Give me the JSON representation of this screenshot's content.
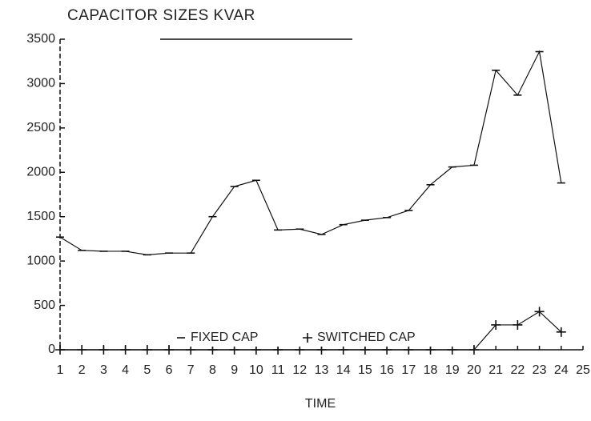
{
  "chart_data": {
    "type": "line",
    "title": "CAPACITOR SIZES KVAR",
    "xlabel": "TIME",
    "x": [
      1,
      2,
      3,
      4,
      5,
      6,
      7,
      8,
      9,
      10,
      11,
      12,
      13,
      14,
      15,
      16,
      17,
      18,
      19,
      20,
      21,
      22,
      23,
      24
    ],
    "series": [
      {
        "name": "FIXED CAP",
        "color": "#111111",
        "marker": "dash",
        "values": [
          1270,
          1120,
          1110,
          1110,
          1070,
          1090,
          1090,
          1500,
          1840,
          1910,
          1350,
          1360,
          1300,
          1410,
          1460,
          1490,
          1570,
          1860,
          2060,
          2080,
          3150,
          2870,
          3360,
          1880
        ]
      },
      {
        "name": "SWITCHED CAP",
        "color": "#111111",
        "marker": "plus",
        "values": [
          0,
          0,
          0,
          0,
          0,
          0,
          0,
          0,
          0,
          0,
          0,
          0,
          0,
          0,
          0,
          0,
          0,
          0,
          0,
          0,
          280,
          280,
          430,
          200
        ]
      }
    ],
    "xlim": [
      1,
      25
    ],
    "xticks": [
      1,
      2,
      3,
      4,
      5,
      6,
      7,
      8,
      9,
      10,
      11,
      12,
      13,
      14,
      15,
      16,
      17,
      18,
      19,
      20,
      21,
      22,
      23,
      24,
      25
    ],
    "ylim": [
      0,
      3500
    ],
    "yticks": [
      0,
      500,
      1000,
      1500,
      2000,
      2500,
      3000,
      3500
    ],
    "grid": false,
    "legend": "bottom"
  }
}
